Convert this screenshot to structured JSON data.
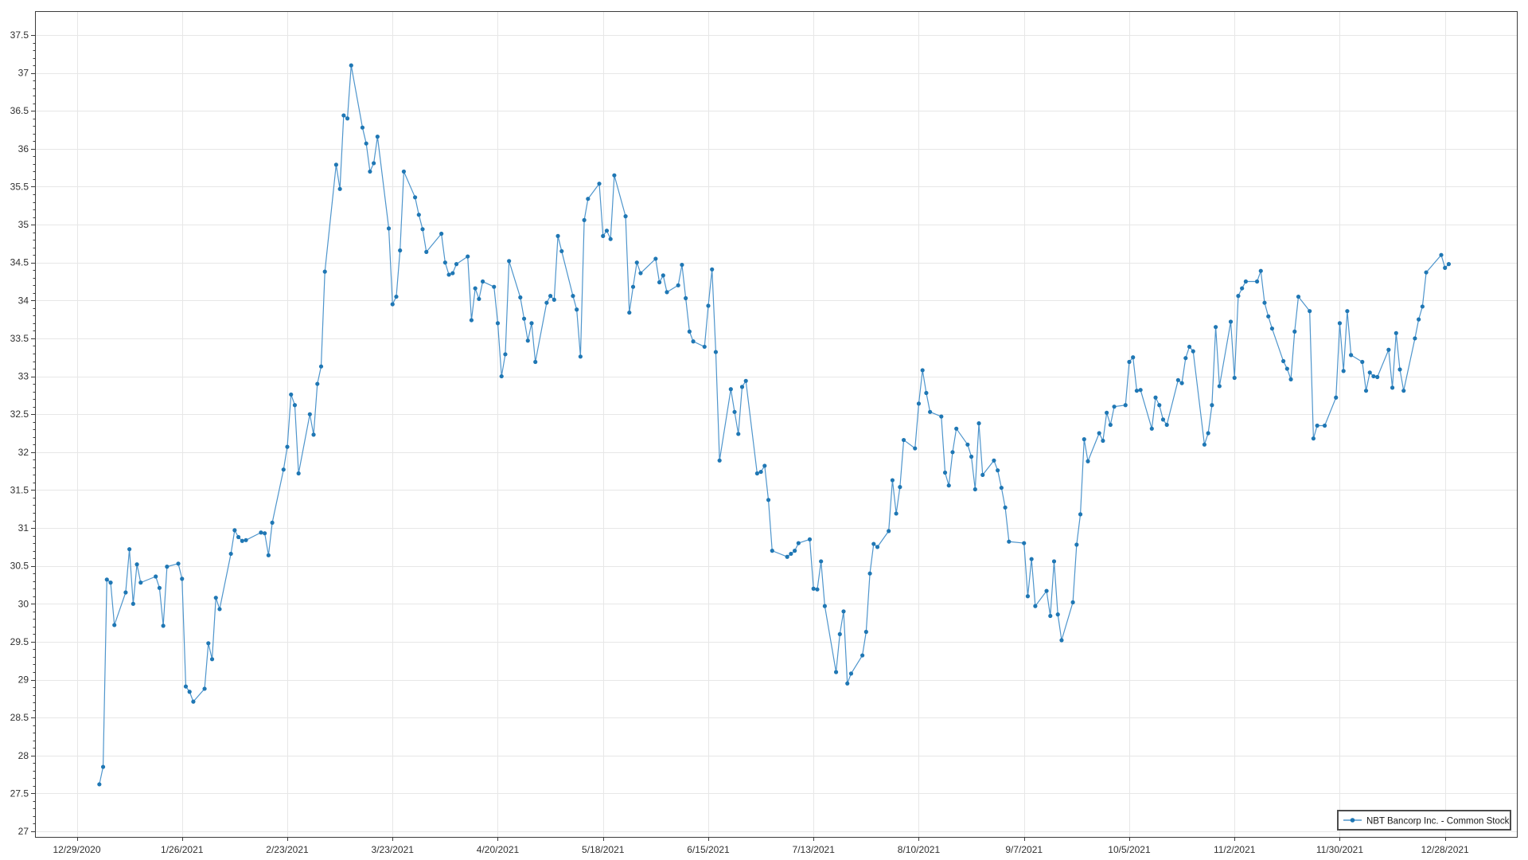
{
  "page": {
    "background": "#ffffff"
  },
  "legend": {
    "label": "NBT Bancorp Inc. - Common Stock"
  },
  "chart_data": {
    "type": "line",
    "title": "",
    "xlabel": "",
    "ylabel": "",
    "grid": true,
    "legend_position": "bottom-right-inside",
    "y_axis": {
      "min": 27,
      "max": 37.5,
      "step": 0.5,
      "minor_step": 0.1
    },
    "x_axis_tick_labels": [
      {
        "date": "2020-12-29",
        "label": "12/29/2020"
      },
      {
        "date": "2021-01-26",
        "label": "1/26/2021"
      },
      {
        "date": "2021-02-23",
        "label": "2/23/2021"
      },
      {
        "date": "2021-03-23",
        "label": "3/23/2021"
      },
      {
        "date": "2021-04-20",
        "label": "4/20/2021"
      },
      {
        "date": "2021-05-18",
        "label": "5/18/2021"
      },
      {
        "date": "2021-06-15",
        "label": "6/15/2021"
      },
      {
        "date": "2021-07-13",
        "label": "7/13/2021"
      },
      {
        "date": "2021-08-10",
        "label": "8/10/2021"
      },
      {
        "date": "2021-09-07",
        "label": "9/7/2021"
      },
      {
        "date": "2021-10-05",
        "label": "10/5/2021"
      },
      {
        "date": "2021-11-02",
        "label": "11/2/2021"
      },
      {
        "date": "2021-11-30",
        "label": "11/30/2021"
      },
      {
        "date": "2021-12-28",
        "label": "12/28/2021"
      }
    ],
    "series": [
      {
        "name": "NBT Bancorp Inc. - Common Stock",
        "line_color": "#4e95cc",
        "marker_color": "#1f77b4",
        "dates": [
          "2021-01-04",
          "2021-01-05",
          "2021-01-06",
          "2021-01-07",
          "2021-01-08",
          "2021-01-11",
          "2021-01-12",
          "2021-01-13",
          "2021-01-14",
          "2021-01-15",
          "2021-01-19",
          "2021-01-20",
          "2021-01-21",
          "2021-01-22",
          "2021-01-25",
          "2021-01-26",
          "2021-01-27",
          "2021-01-28",
          "2021-01-29",
          "2021-02-01",
          "2021-02-02",
          "2021-02-03",
          "2021-02-04",
          "2021-02-05",
          "2021-02-08",
          "2021-02-09",
          "2021-02-10",
          "2021-02-11",
          "2021-02-12",
          "2021-02-16",
          "2021-02-17",
          "2021-02-18",
          "2021-02-19",
          "2021-02-22",
          "2021-02-23",
          "2021-02-24",
          "2021-02-25",
          "2021-02-26",
          "2021-03-01",
          "2021-03-02",
          "2021-03-03",
          "2021-03-04",
          "2021-03-05",
          "2021-03-08",
          "2021-03-09",
          "2021-03-10",
          "2021-03-11",
          "2021-03-12",
          "2021-03-15",
          "2021-03-16",
          "2021-03-17",
          "2021-03-18",
          "2021-03-19",
          "2021-03-22",
          "2021-03-23",
          "2021-03-24",
          "2021-03-25",
          "2021-03-26",
          "2021-03-29",
          "2021-03-30",
          "2021-03-31",
          "2021-04-01",
          "2021-04-05",
          "2021-04-06",
          "2021-04-07",
          "2021-04-08",
          "2021-04-09",
          "2021-04-12",
          "2021-04-13",
          "2021-04-14",
          "2021-04-15",
          "2021-04-16",
          "2021-04-19",
          "2021-04-20",
          "2021-04-21",
          "2021-04-22",
          "2021-04-23",
          "2021-04-26",
          "2021-04-27",
          "2021-04-28",
          "2021-04-29",
          "2021-04-30",
          "2021-05-03",
          "2021-05-04",
          "2021-05-05",
          "2021-05-06",
          "2021-05-07",
          "2021-05-10",
          "2021-05-11",
          "2021-05-12",
          "2021-05-13",
          "2021-05-14",
          "2021-05-17",
          "2021-05-18",
          "2021-05-19",
          "2021-05-20",
          "2021-05-21",
          "2021-05-24",
          "2021-05-25",
          "2021-05-26",
          "2021-05-27",
          "2021-05-28",
          "2021-06-01",
          "2021-06-02",
          "2021-06-03",
          "2021-06-04",
          "2021-06-07",
          "2021-06-08",
          "2021-06-09",
          "2021-06-10",
          "2021-06-11",
          "2021-06-14",
          "2021-06-15",
          "2021-06-16",
          "2021-06-17",
          "2021-06-18",
          "2021-06-21",
          "2021-06-22",
          "2021-06-23",
          "2021-06-24",
          "2021-06-25",
          "2021-06-28",
          "2021-06-29",
          "2021-06-30",
          "2021-07-01",
          "2021-07-02",
          "2021-07-06",
          "2021-07-07",
          "2021-07-08",
          "2021-07-09",
          "2021-07-12",
          "2021-07-13",
          "2021-07-14",
          "2021-07-15",
          "2021-07-16",
          "2021-07-19",
          "2021-07-20",
          "2021-07-21",
          "2021-07-22",
          "2021-07-23",
          "2021-07-26",
          "2021-07-27",
          "2021-07-28",
          "2021-07-29",
          "2021-07-30",
          "2021-08-02",
          "2021-08-03",
          "2021-08-04",
          "2021-08-05",
          "2021-08-06",
          "2021-08-09",
          "2021-08-10",
          "2021-08-11",
          "2021-08-12",
          "2021-08-13",
          "2021-08-16",
          "2021-08-17",
          "2021-08-18",
          "2021-08-19",
          "2021-08-20",
          "2021-08-23",
          "2021-08-24",
          "2021-08-25",
          "2021-08-26",
          "2021-08-27",
          "2021-08-30",
          "2021-08-31",
          "2021-09-01",
          "2021-09-02",
          "2021-09-03",
          "2021-09-07",
          "2021-09-08",
          "2021-09-09",
          "2021-09-10",
          "2021-09-13",
          "2021-09-14",
          "2021-09-15",
          "2021-09-16",
          "2021-09-17",
          "2021-09-20",
          "2021-09-21",
          "2021-09-22",
          "2021-09-23",
          "2021-09-24",
          "2021-09-27",
          "2021-09-28",
          "2021-09-29",
          "2021-09-30",
          "2021-10-01",
          "2021-10-04",
          "2021-10-05",
          "2021-10-06",
          "2021-10-07",
          "2021-10-08",
          "2021-10-11",
          "2021-10-12",
          "2021-10-13",
          "2021-10-14",
          "2021-10-15",
          "2021-10-18",
          "2021-10-19",
          "2021-10-20",
          "2021-10-21",
          "2021-10-22",
          "2021-10-25",
          "2021-10-26",
          "2021-10-27",
          "2021-10-28",
          "2021-10-29",
          "2021-11-01",
          "2021-11-02",
          "2021-11-03",
          "2021-11-04",
          "2021-11-05",
          "2021-11-08",
          "2021-11-09",
          "2021-11-10",
          "2021-11-11",
          "2021-11-12",
          "2021-11-15",
          "2021-11-16",
          "2021-11-17",
          "2021-11-18",
          "2021-11-19",
          "2021-11-22",
          "2021-11-23",
          "2021-11-24",
          "2021-11-26",
          "2021-11-29",
          "2021-11-30",
          "2021-12-01",
          "2021-12-02",
          "2021-12-03",
          "2021-12-06",
          "2021-12-07",
          "2021-12-08",
          "2021-12-09",
          "2021-12-10",
          "2021-12-13",
          "2021-12-14",
          "2021-12-15",
          "2021-12-16",
          "2021-12-17",
          "2021-12-20",
          "2021-12-21",
          "2021-12-22",
          "2021-12-23",
          "2021-12-27",
          "2021-12-28",
          "2021-12-29"
        ],
        "values": [
          27.62,
          27.85,
          30.32,
          30.28,
          29.72,
          30.15,
          30.72,
          30.0,
          30.52,
          30.28,
          30.36,
          30.21,
          29.71,
          30.49,
          30.53,
          30.33,
          28.91,
          28.84,
          28.71,
          28.88,
          29.48,
          29.27,
          30.08,
          29.93,
          30.66,
          30.97,
          30.88,
          30.83,
          30.84,
          30.94,
          30.93,
          30.64,
          31.07,
          31.77,
          32.07,
          32.76,
          32.62,
          31.72,
          32.5,
          32.23,
          32.9,
          33.13,
          34.38,
          35.79,
          35.47,
          36.44,
          36.4,
          37.1,
          36.28,
          36.07,
          35.7,
          35.81,
          36.16,
          34.95,
          33.95,
          34.05,
          34.66,
          35.7,
          35.36,
          35.13,
          34.94,
          34.64,
          34.88,
          34.5,
          34.34,
          34.36,
          34.48,
          34.58,
          33.74,
          34.16,
          34.02,
          34.25,
          34.18,
          33.7,
          33.0,
          33.29,
          34.52,
          34.04,
          33.76,
          33.47,
          33.7,
          33.19,
          33.97,
          34.06,
          34.01,
          34.85,
          34.65,
          34.06,
          33.88,
          33.26,
          35.06,
          35.34,
          35.54,
          34.85,
          34.92,
          34.81,
          35.65,
          35.11,
          33.84,
          34.18,
          34.5,
          34.36,
          34.55,
          34.24,
          34.33,
          34.11,
          34.2,
          34.47,
          34.03,
          33.59,
          33.46,
          33.39,
          33.93,
          34.41,
          33.32,
          31.89,
          32.83,
          32.53,
          32.24,
          32.86,
          32.94,
          31.72,
          31.74,
          31.82,
          31.37,
          30.7,
          30.62,
          30.66,
          30.7,
          30.8,
          30.85,
          30.2,
          30.19,
          30.56,
          29.97,
          29.1,
          29.6,
          29.9,
          28.95,
          29.08,
          29.32,
          29.63,
          30.4,
          30.79,
          30.75,
          30.96,
          31.63,
          31.19,
          31.54,
          32.16,
          32.05,
          32.64,
          33.08,
          32.78,
          32.53,
          32.47,
          31.73,
          31.56,
          32.0,
          32.31,
          32.1,
          31.94,
          31.51,
          32.38,
          31.7,
          31.89,
          31.76,
          31.53,
          31.27,
          30.82,
          30.8,
          30.1,
          30.59,
          29.97,
          30.17,
          29.84,
          30.56,
          29.86,
          29.52,
          30.02,
          30.78,
          31.18,
          32.17,
          31.88,
          32.25,
          32.15,
          32.52,
          32.36,
          32.6,
          32.62,
          33.19,
          33.25,
          32.81,
          32.82,
          32.31,
          32.72,
          32.62,
          32.43,
          32.36,
          32.95,
          32.91,
          33.24,
          33.39,
          33.33,
          32.1,
          32.25,
          32.62,
          33.65,
          32.87,
          33.72,
          32.98,
          34.06,
          34.16,
          34.25,
          34.25,
          34.39,
          33.97,
          33.79,
          33.63,
          33.2,
          33.1,
          32.96,
          33.59,
          34.05,
          33.86,
          32.18,
          32.35,
          32.35,
          32.72,
          33.7,
          33.07,
          33.86,
          33.28,
          33.19,
          32.81,
          33.05,
          33.0,
          32.99,
          33.35,
          32.85,
          33.57,
          33.09,
          32.81,
          33.5,
          33.75,
          33.92,
          34.37,
          34.6,
          34.43,
          34.48
        ]
      }
    ]
  }
}
